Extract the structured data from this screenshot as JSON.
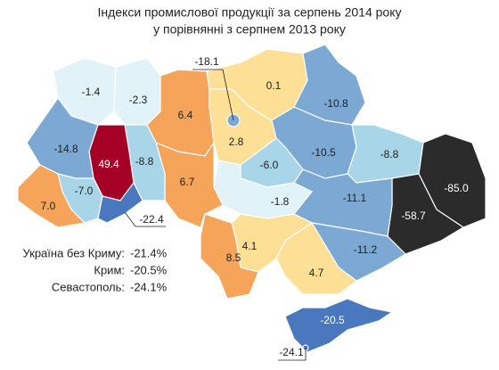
{
  "title": [
    "Індекси промислової продукції за серпень 2014 року",
    "у порівнянні з серпнем 2013 року"
  ],
  "regions": [
    {
      "value": -1.4,
      "color": "#e1f2f8"
    },
    {
      "value": -2.3,
      "color": "#e1f2f8"
    },
    {
      "value": 6.4,
      "color": "#f7a45b"
    },
    {
      "value": 0.1,
      "color": "#fddf95"
    },
    {
      "value": -10.8,
      "color": "#7ca9d3"
    },
    {
      "value": 2.8,
      "color": "#fddf95"
    },
    {
      "value": -18.1,
      "color": "#7ca9d3"
    },
    {
      "value": -10.5,
      "color": "#7ca9d3"
    },
    {
      "value": -8.8,
      "color": "#a9d5e8"
    },
    {
      "value": -85.0,
      "label": "-85.0",
      "color": "#2b2b2b"
    },
    {
      "value": -58.7,
      "color": "#2b2b2b"
    },
    {
      "value": -6.0,
      "label": "-6.0",
      "color": "#a9d5e8"
    },
    {
      "value": -1.8,
      "color": "#e1f2f8"
    },
    {
      "value": -11.1,
      "color": "#7ca9d3"
    },
    {
      "value": -11.2,
      "color": "#7ca9d3"
    },
    {
      "value": 4.7,
      "color": "#fddf95"
    },
    {
      "value": 4.1,
      "color": "#fddf95"
    },
    {
      "value": 8.5,
      "color": "#f7a45b"
    },
    {
      "value": 6.7,
      "color": "#f7a45b"
    },
    {
      "value": -8.8,
      "color": "#a9d5e8"
    },
    {
      "value": 49.4,
      "color": "#a50026"
    },
    {
      "value": -14.8,
      "color": "#7ca9d3"
    },
    {
      "value": -7.0,
      "label": "-7.0",
      "color": "#a9d5e8"
    },
    {
      "value": 7.0,
      "label": "7.0",
      "color": "#f7a45b"
    },
    {
      "value": -22.4,
      "color": "#4a78bf"
    },
    {
      "value": -20.5,
      "color": "#4a78bf"
    },
    {
      "value": -24.1,
      "color": "#4a78bf"
    }
  ],
  "summary": [
    {
      "label": "Україна без Криму:",
      "value": -21.4,
      "value_label": "-21.4%"
    },
    {
      "label": "Крим:",
      "value": -20.5,
      "value_label": "-20.5%"
    },
    {
      "label": "Севастополь:",
      "value": -24.1,
      "value_label": "-24.1%"
    }
  ]
}
